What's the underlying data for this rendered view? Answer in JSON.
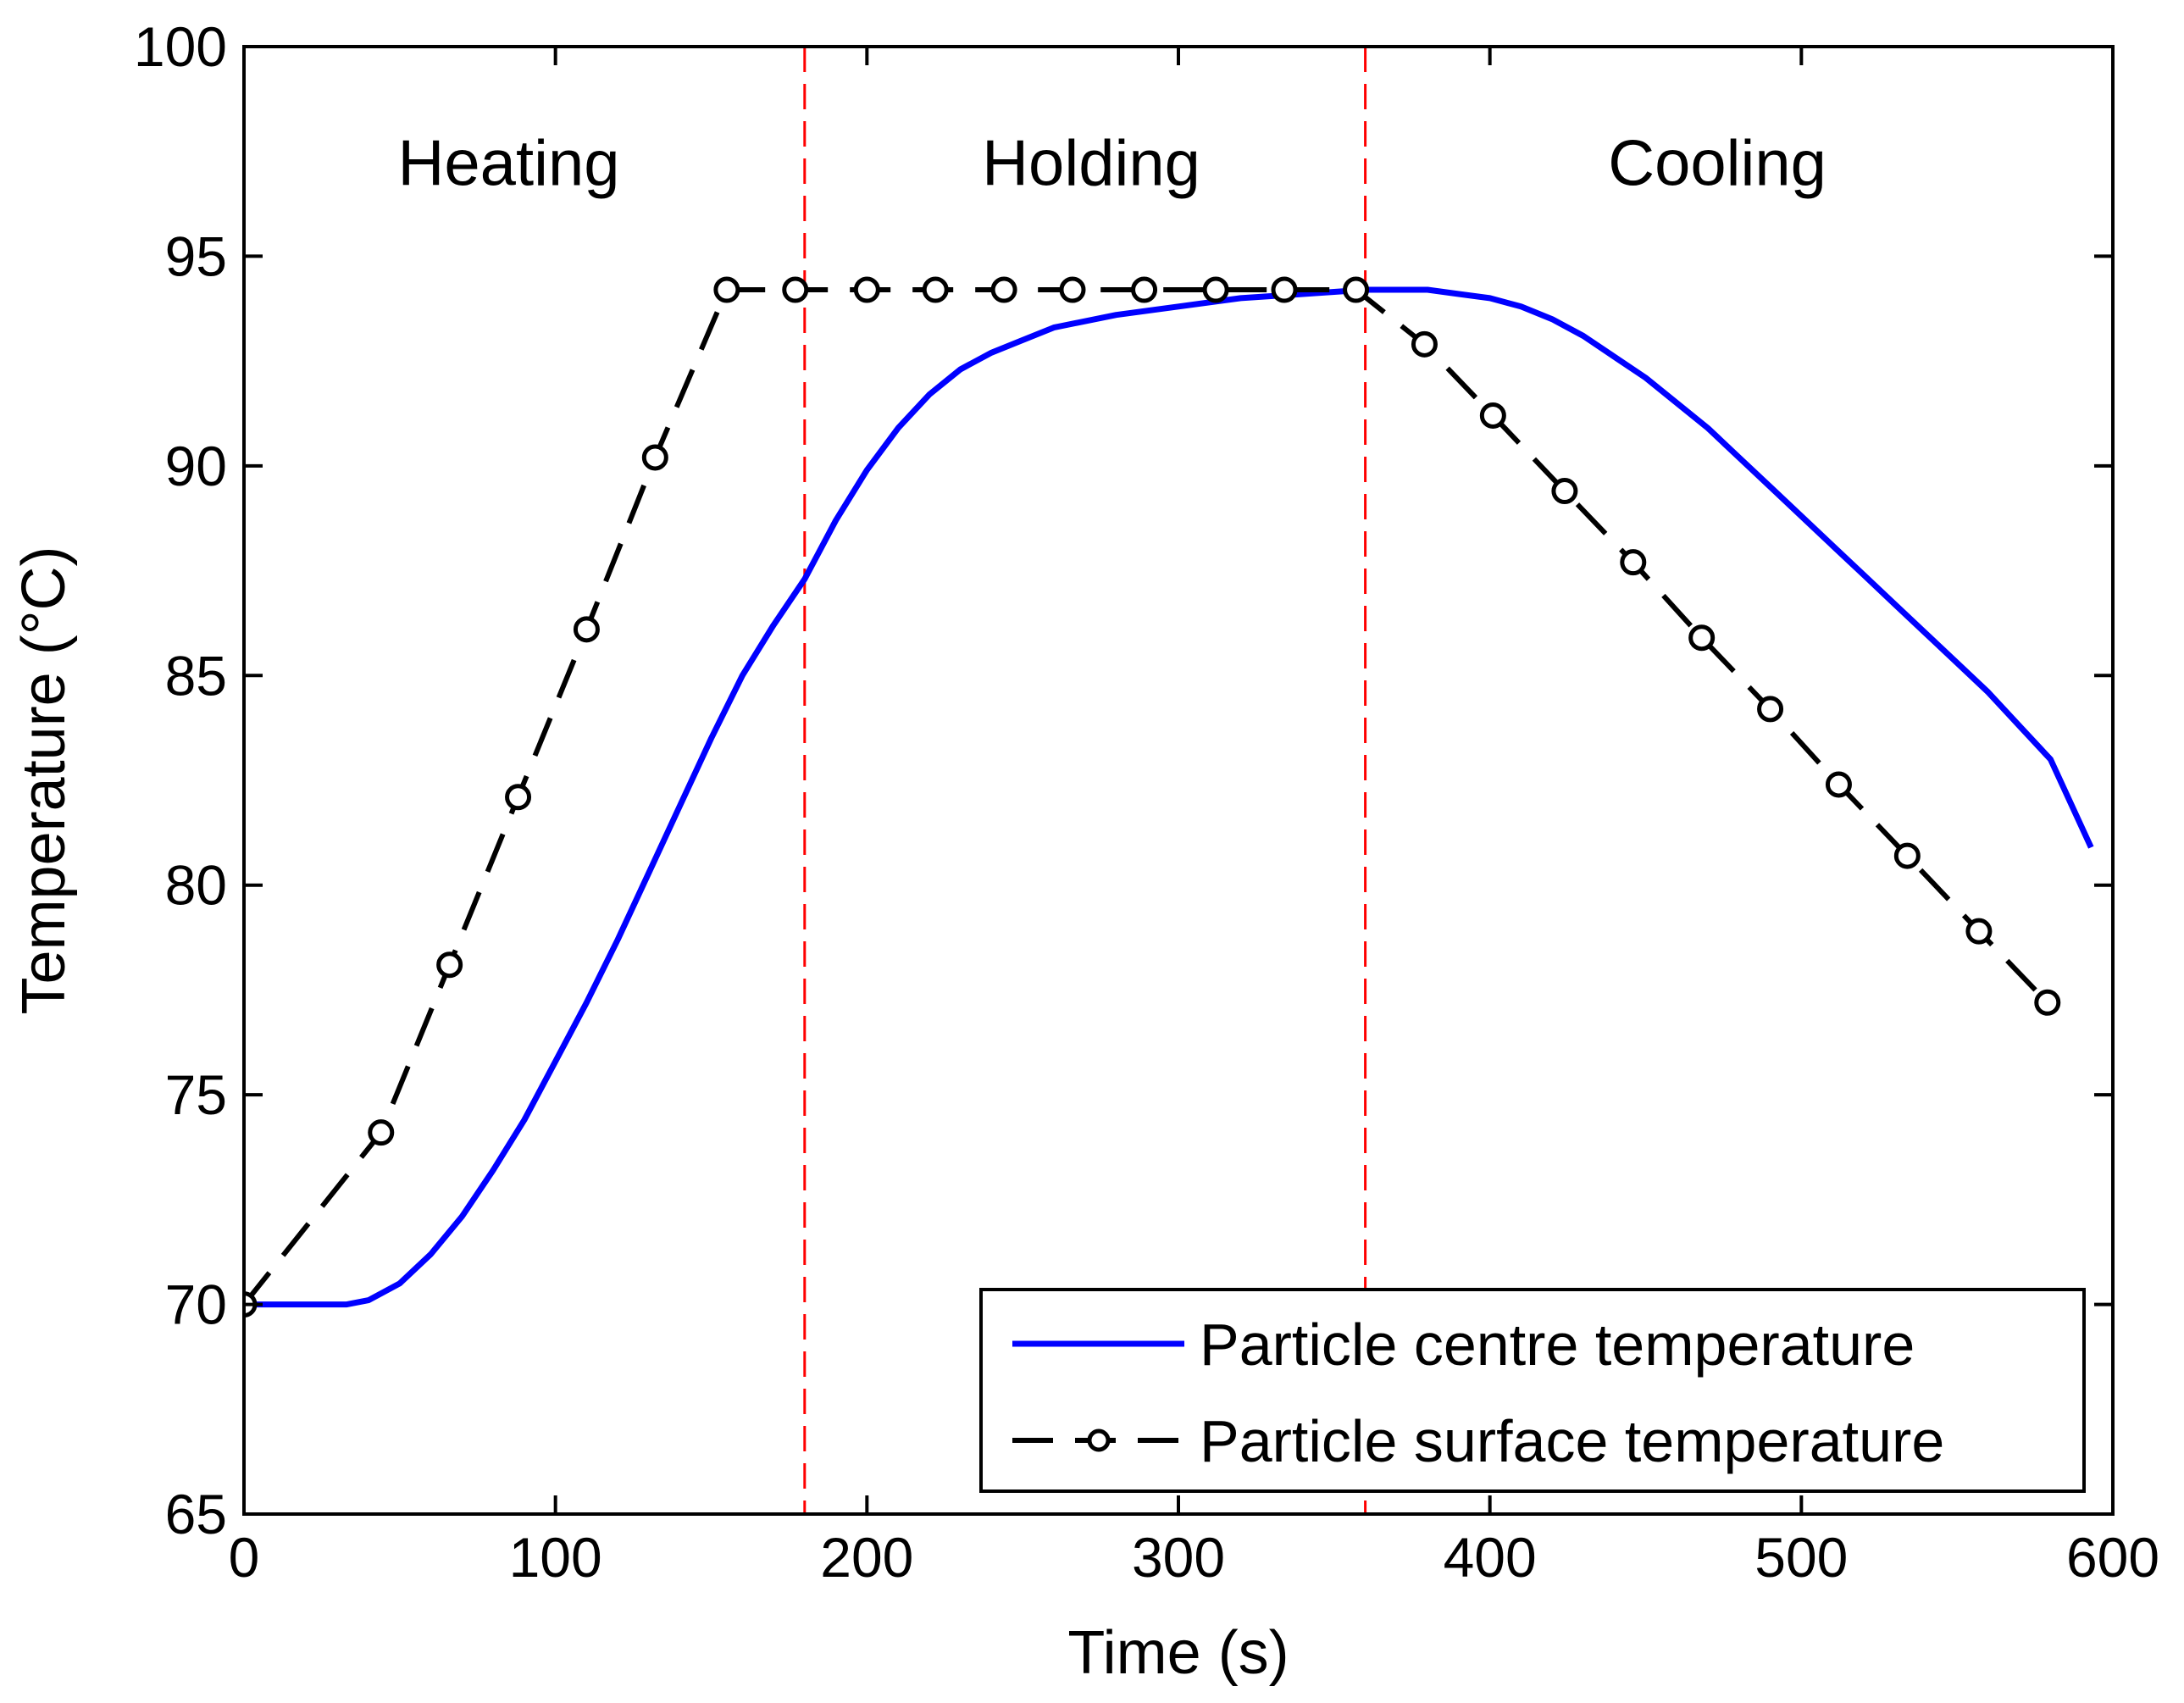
{
  "chart_data": {
    "type": "line",
    "title": "",
    "xlabel": "Time (s)",
    "ylabel": "Temperature (°C)",
    "xlim": [
      0,
      600
    ],
    "ylim": [
      65,
      100
    ],
    "xticks": [
      0,
      100,
      200,
      300,
      400,
      500,
      600
    ],
    "yticks": [
      65,
      70,
      75,
      80,
      85,
      90,
      95,
      100
    ],
    "grid": false,
    "legend_position": "bottom-right",
    "phase_boundaries": [
      180,
      360
    ],
    "phase_labels": [
      {
        "text": "Heating",
        "x": 85,
        "y": 96.7
      },
      {
        "text": "Holding",
        "x": 272,
        "y": 96.7
      },
      {
        "text": "Cooling",
        "x": 473,
        "y": 96.7
      }
    ],
    "series": [
      {
        "name": "Particle centre temperature",
        "color": "#0000ff",
        "style": "solid",
        "marker": "none",
        "x": [
          0,
          33,
          40,
          50,
          60,
          70,
          80,
          90,
          100,
          110,
          120,
          130,
          140,
          150,
          160,
          170,
          180,
          190,
          200,
          210,
          220,
          230,
          240,
          250,
          260,
          280,
          300,
          320,
          340,
          360,
          370,
          380,
          390,
          400,
          410,
          420,
          430,
          440,
          450,
          460,
          470,
          480,
          490,
          500,
          510,
          520,
          530,
          540,
          550,
          560,
          570,
          580,
          593
        ],
        "y": [
          70.0,
          70.0,
          70.1,
          70.5,
          71.2,
          72.1,
          73.2,
          74.4,
          75.8,
          77.2,
          78.7,
          80.3,
          81.9,
          83.5,
          85.0,
          86.2,
          87.3,
          88.7,
          89.9,
          90.9,
          91.7,
          92.3,
          92.7,
          93.0,
          93.3,
          93.6,
          93.8,
          94.0,
          94.1,
          94.2,
          94.2,
          94.2,
          94.1,
          94.0,
          93.8,
          93.5,
          93.1,
          92.6,
          92.1,
          91.5,
          90.9,
          90.2,
          89.5,
          88.8,
          88.1,
          87.4,
          86.7,
          86.0,
          85.3,
          84.6,
          83.8,
          83.0,
          80.9
        ]
      },
      {
        "name": "Particle surface temperature",
        "color": "#000000",
        "style": "dashed",
        "marker": "open-circle",
        "x": [
          0,
          44,
          66,
          88,
          110,
          132,
          155,
          177,
          200,
          222,
          244,
          266,
          289,
          312,
          334,
          357,
          379,
          401,
          424,
          446,
          468,
          490,
          512,
          534,
          557,
          579
        ],
        "y": [
          70.0,
          74.1,
          78.1,
          82.1,
          86.1,
          90.2,
          94.2,
          94.2,
          94.2,
          94.2,
          94.2,
          94.2,
          94.2,
          94.2,
          94.2,
          94.2,
          92.9,
          91.2,
          89.4,
          87.7,
          85.9,
          84.2,
          82.4,
          80.7,
          78.9,
          77.2
        ]
      }
    ]
  }
}
